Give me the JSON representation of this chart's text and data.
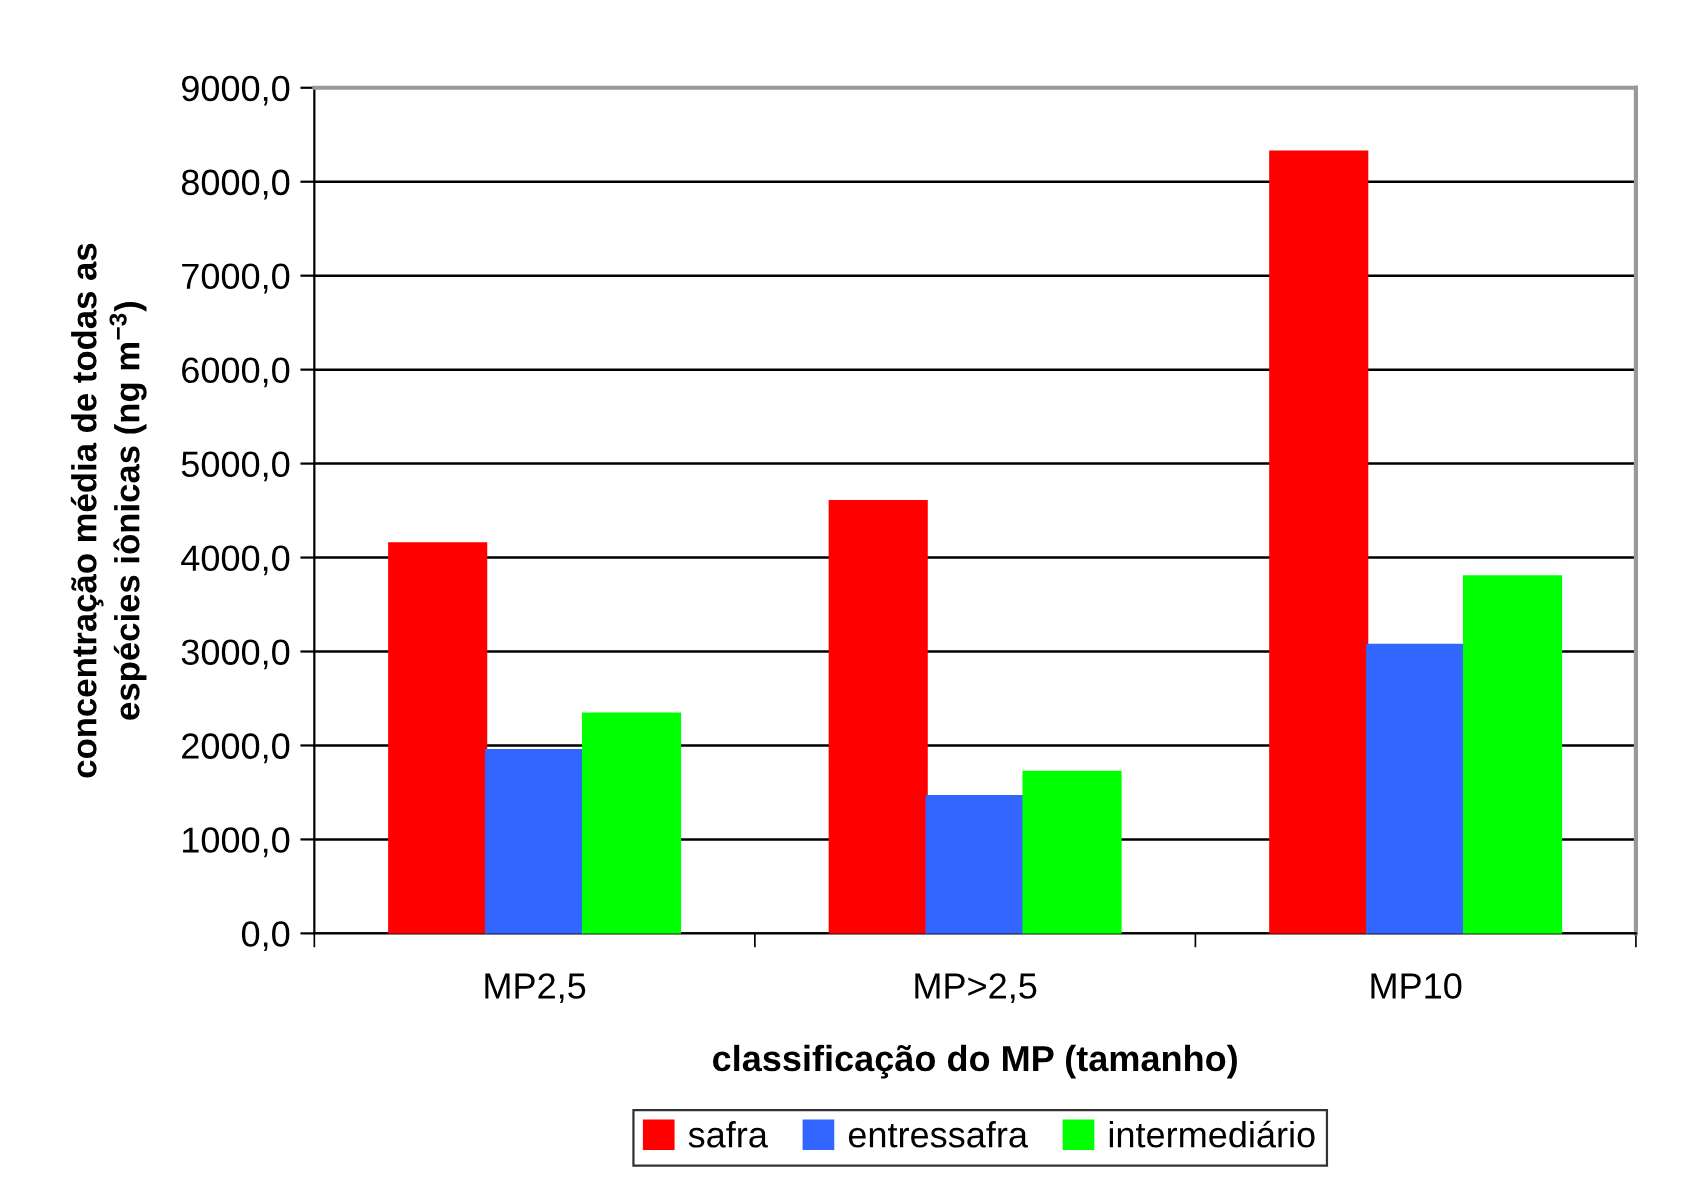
{
  "chart_data": {
    "type": "bar",
    "xlabel": "classificação do MP (tamanho)",
    "ylabel": "concentração média de todas as\nespécies iônicas (ng m$^{−3}$)",
    "categories": [
      "MP2,5",
      "MP>2,5",
      "MP10"
    ],
    "series": [
      {
        "name": "safra",
        "color": "#ff0000",
        "values": [
          4150,
          4600,
          8320
        ]
      },
      {
        "name": "entressafra",
        "color": "#3366ff",
        "values": [
          1950,
          1460,
          3070
        ]
      },
      {
        "name": "intermediário",
        "color": "#00ff00",
        "values": [
          2340,
          1720,
          3800
        ]
      }
    ],
    "ylim": [
      0,
      9000
    ],
    "yticks": [
      {
        "value": 0,
        "label": "0,0"
      },
      {
        "value": 1000,
        "label": "1000,0"
      },
      {
        "value": 2000,
        "label": "2000,0"
      },
      {
        "value": 3000,
        "label": "3000,0"
      },
      {
        "value": 4000,
        "label": "4000,0"
      },
      {
        "value": 5000,
        "label": "5000,0"
      },
      {
        "value": 6000,
        "label": "6000,0"
      },
      {
        "value": 7000,
        "label": "7000,0"
      },
      {
        "value": 8000,
        "label": "8000,0"
      },
      {
        "value": 9000,
        "label": "9000,0"
      }
    ],
    "grid": "y",
    "legend": "bottom"
  }
}
